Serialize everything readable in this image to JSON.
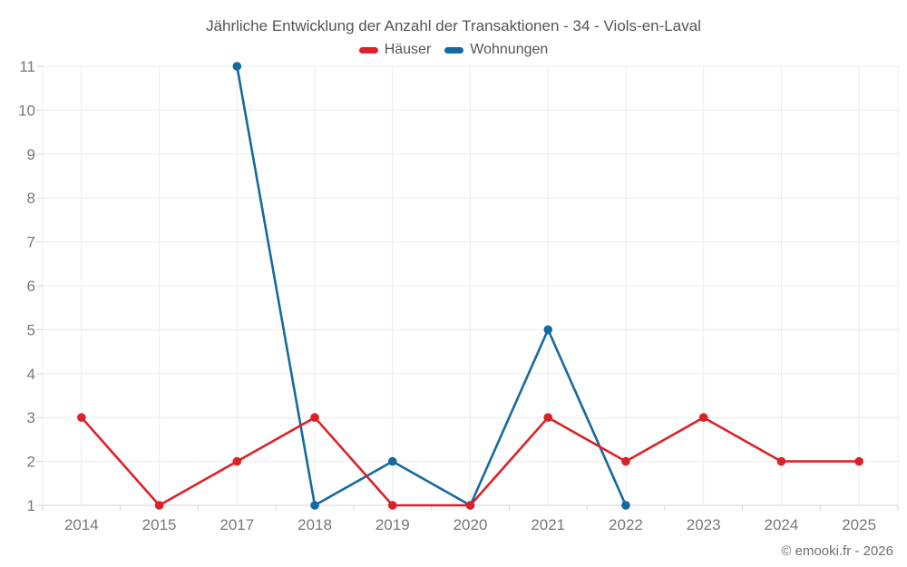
{
  "credit": "© emooki.fr - 2026",
  "chart_data": {
    "type": "line",
    "title": "Jährliche Entwicklung der Anzahl der Transaktionen - 34 - Viols-en-Laval",
    "categories": [
      "2014",
      "2015",
      "2017",
      "2018",
      "2019",
      "2020",
      "2021",
      "2022",
      "2023",
      "2024",
      "2025"
    ],
    "series": [
      {
        "name": "Häuser",
        "color": "#db2127",
        "values": [
          3,
          1,
          2,
          3,
          1,
          1,
          3,
          2,
          3,
          2,
          2
        ]
      },
      {
        "name": "Wohnungen",
        "color": "#16699f",
        "values": [
          null,
          null,
          11,
          1,
          2,
          1,
          5,
          1,
          null,
          null,
          null
        ]
      }
    ],
    "xlabel": "",
    "ylabel": "",
    "ylim": [
      1,
      11
    ],
    "yticks": [
      1,
      2,
      3,
      4,
      5,
      6,
      7,
      8,
      9,
      10,
      11
    ],
    "grid": true,
    "legend_position": "top",
    "colors": {
      "grid": "#ececec",
      "axis_line": "#d6d6d6",
      "tick": "#d6d6d6",
      "tick_label": "#777777",
      "title_text": "#545454",
      "legend_text": "#555555",
      "credit_text": "#707070",
      "background": "#ffffff"
    }
  }
}
